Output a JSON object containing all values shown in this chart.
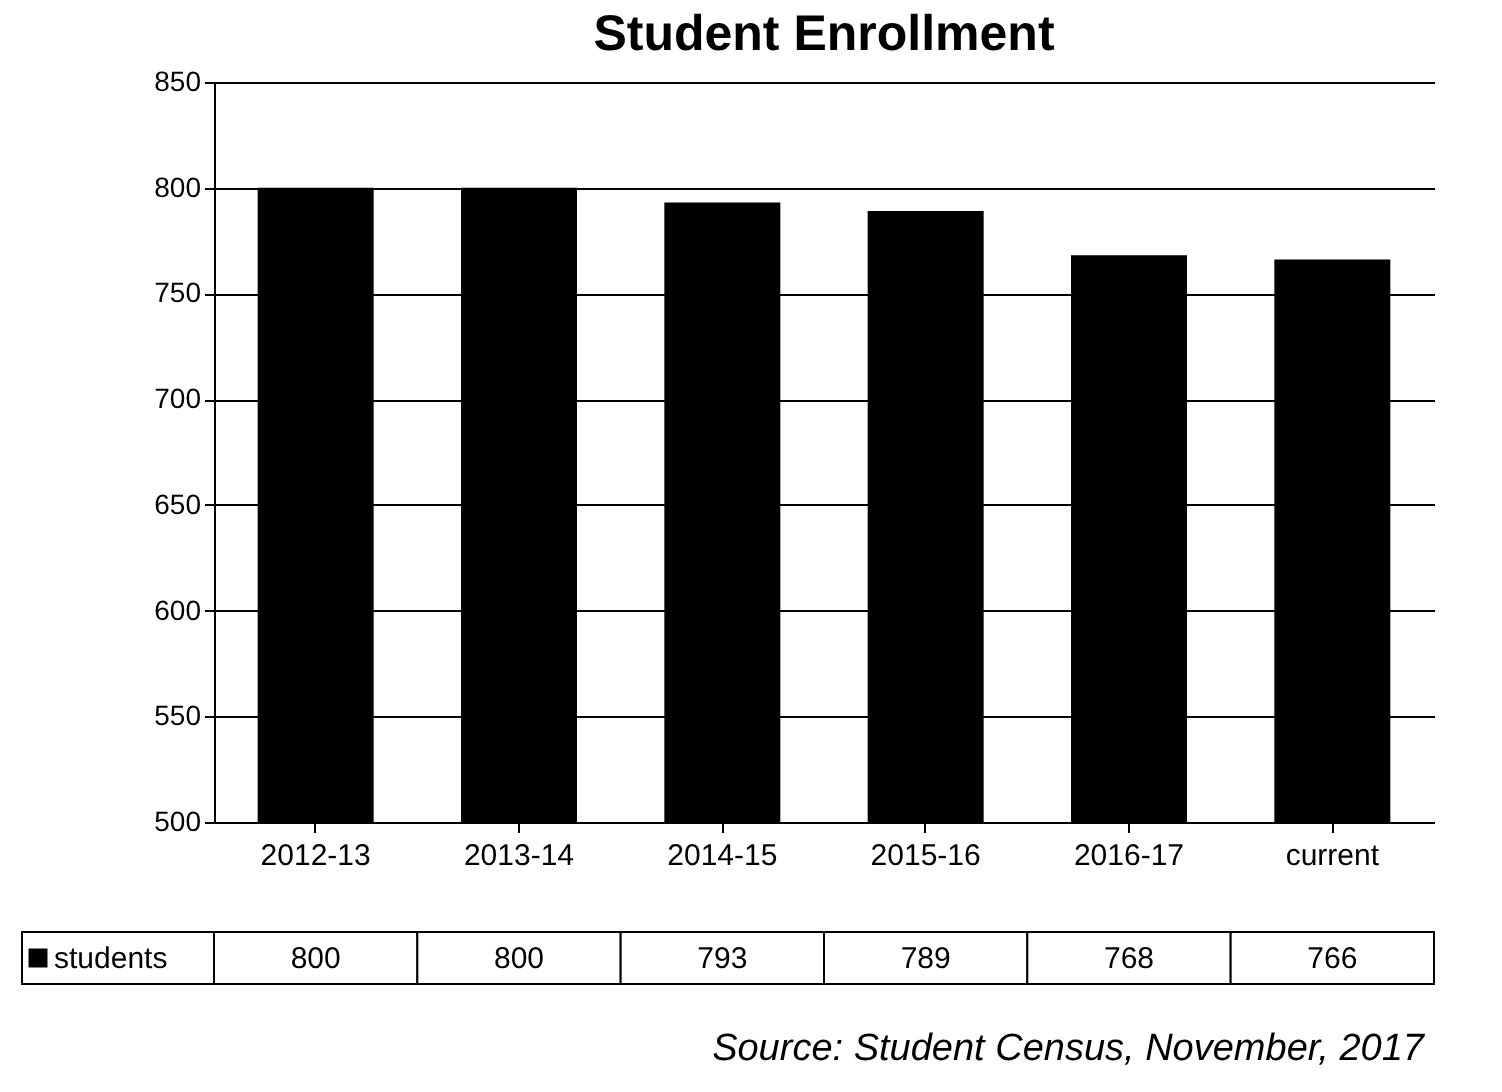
{
  "chart_data": {
    "type": "bar",
    "title": "Student Enrollment",
    "categories": [
      "2012-13",
      "2013-14",
      "2014-15",
      "2015-16",
      "2016-17",
      "current"
    ],
    "series": [
      {
        "name": "students",
        "color": "#000000",
        "values": [
          800,
          800,
          793,
          789,
          768,
          766
        ]
      }
    ],
    "ylim": [
      500,
      850
    ],
    "yticks": [
      500,
      550,
      600,
      650,
      700,
      750,
      800,
      850
    ],
    "grid": "y",
    "data_labels": true,
    "legend": "bottom left",
    "annotations": [
      "Source: Student Census, November, 2017"
    ]
  }
}
